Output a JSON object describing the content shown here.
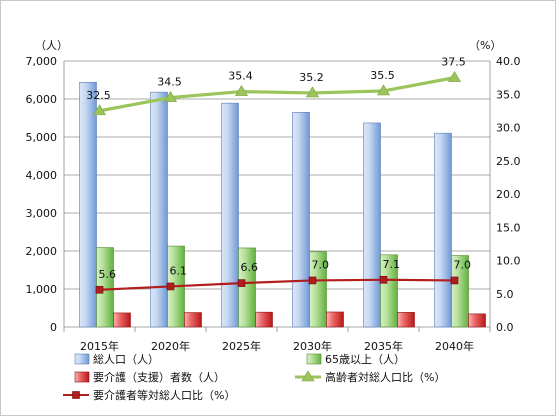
{
  "chart_data": {
    "type": "bar",
    "categories": [
      "2015年",
      "2020年",
      "2025年",
      "2030年",
      "2035年",
      "2040年"
    ],
    "y_left": {
      "unit": "（人）",
      "ylim": [
        0,
        7000
      ],
      "ticks": [
        "0",
        "1,000",
        "2,000",
        "3,000",
        "4,000",
        "5,000",
        "6,000",
        "7,000"
      ]
    },
    "y_right": {
      "unit": "（%）",
      "ylim": [
        0,
        40
      ],
      "ticks": [
        "0.0",
        "5.0",
        "10.0",
        "15.0",
        "20.0",
        "25.0",
        "30.0",
        "35.0",
        "40.0"
      ]
    },
    "bar_series": [
      {
        "name": "総人口（人）",
        "values": [
          6440,
          6180,
          5890,
          5650,
          5370,
          5100
        ],
        "color": "#8fb4e3"
      },
      {
        "name": "65歳以上（人）",
        "values": [
          2090,
          2130,
          2080,
          1980,
          1900,
          1880
        ],
        "color": "#8fce6a"
      },
      {
        "name": "要介護（支援）者数（人）",
        "values": [
          370,
          380,
          390,
          395,
          385,
          345
        ],
        "color": "#e03030"
      }
    ],
    "line_series": [
      {
        "name": "高齢者対総人口比（%）",
        "values": [
          32.5,
          34.5,
          35.4,
          35.2,
          35.5,
          37.5
        ],
        "labels": [
          "32.5",
          "34.5",
          "35.4",
          "35.2",
          "35.5",
          "37.5"
        ],
        "color": "#9bc45a"
      },
      {
        "name": "要介護者等対総人口比（%）",
        "values": [
          5.6,
          6.1,
          6.6,
          7.0,
          7.1,
          7.0
        ],
        "labels": [
          "5.6",
          "6.1",
          "6.6",
          "7.0",
          "7.1",
          "7.0"
        ],
        "color": "#b01e1e"
      }
    ],
    "grid": true,
    "legend_position": "bottom"
  }
}
